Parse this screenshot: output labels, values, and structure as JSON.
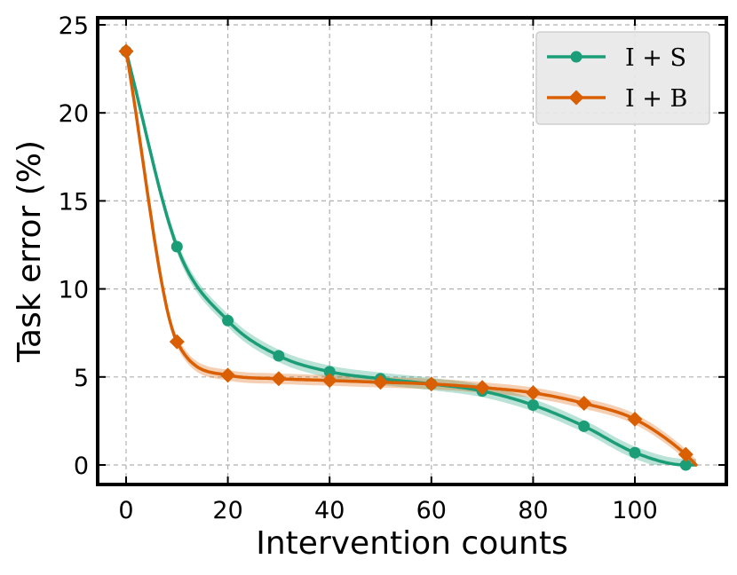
{
  "chart_data": {
    "type": "line",
    "xlabel": "Intervention counts",
    "ylabel": "Task error (%)",
    "xlim": [
      -6,
      118
    ],
    "ylim": [
      -1.2,
      25.3
    ],
    "xticks": [
      0,
      20,
      40,
      60,
      80,
      100
    ],
    "yticks": [
      0,
      5,
      10,
      15,
      20,
      25
    ],
    "grid": true,
    "legend_position": "top-right",
    "series": [
      {
        "name": "I + S",
        "color": "#1b9e77",
        "marker": "circle",
        "x": [
          0,
          10,
          20,
          30,
          40,
          50,
          60,
          70,
          80,
          90,
          100,
          110
        ],
        "values": [
          23.5,
          12.4,
          8.2,
          6.2,
          5.3,
          4.9,
          4.6,
          4.2,
          3.4,
          2.2,
          0.7,
          0.0
        ]
      },
      {
        "name": "I + B",
        "color": "#d95f02",
        "marker": "diamond",
        "x": [
          0,
          10,
          20,
          30,
          40,
          50,
          60,
          70,
          80,
          90,
          100,
          110
        ],
        "values": [
          23.5,
          7.0,
          5.1,
          4.9,
          4.8,
          4.7,
          4.6,
          4.4,
          4.1,
          3.5,
          2.6,
          0.6
        ]
      }
    ]
  }
}
